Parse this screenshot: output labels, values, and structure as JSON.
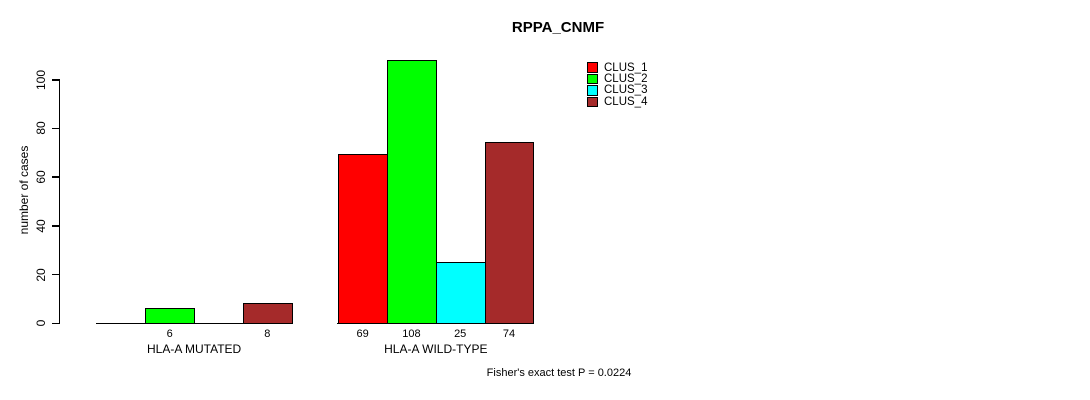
{
  "chart_data": {
    "type": "bar",
    "title": "RPPA_CNMF",
    "ylabel": "number of cases",
    "xlabel": "",
    "categories": [
      "HLA-A MUTATED",
      "HLA-A WILD-TYPE"
    ],
    "series": [
      {
        "name": "CLUS_1",
        "color": "#FF0000",
        "values": [
          0,
          69
        ]
      },
      {
        "name": "CLUS_2",
        "color": "#00FF00",
        "values": [
          6,
          108
        ]
      },
      {
        "name": "CLUS_3",
        "color": "#00FFFF",
        "values": [
          0,
          25
        ]
      },
      {
        "name": "CLUS_4",
        "color": "#A52A2A",
        "values": [
          8,
          74
        ]
      }
    ],
    "yticks": [
      0,
      20,
      40,
      60,
      80,
      100
    ],
    "ylim": [
      0,
      108
    ],
    "grid": false,
    "legend_position": "top-right",
    "zero_value_bars_hidden": true,
    "bar_value_labels_visible": true,
    "annotation": "Fisher's exact test P = 0.0224"
  }
}
